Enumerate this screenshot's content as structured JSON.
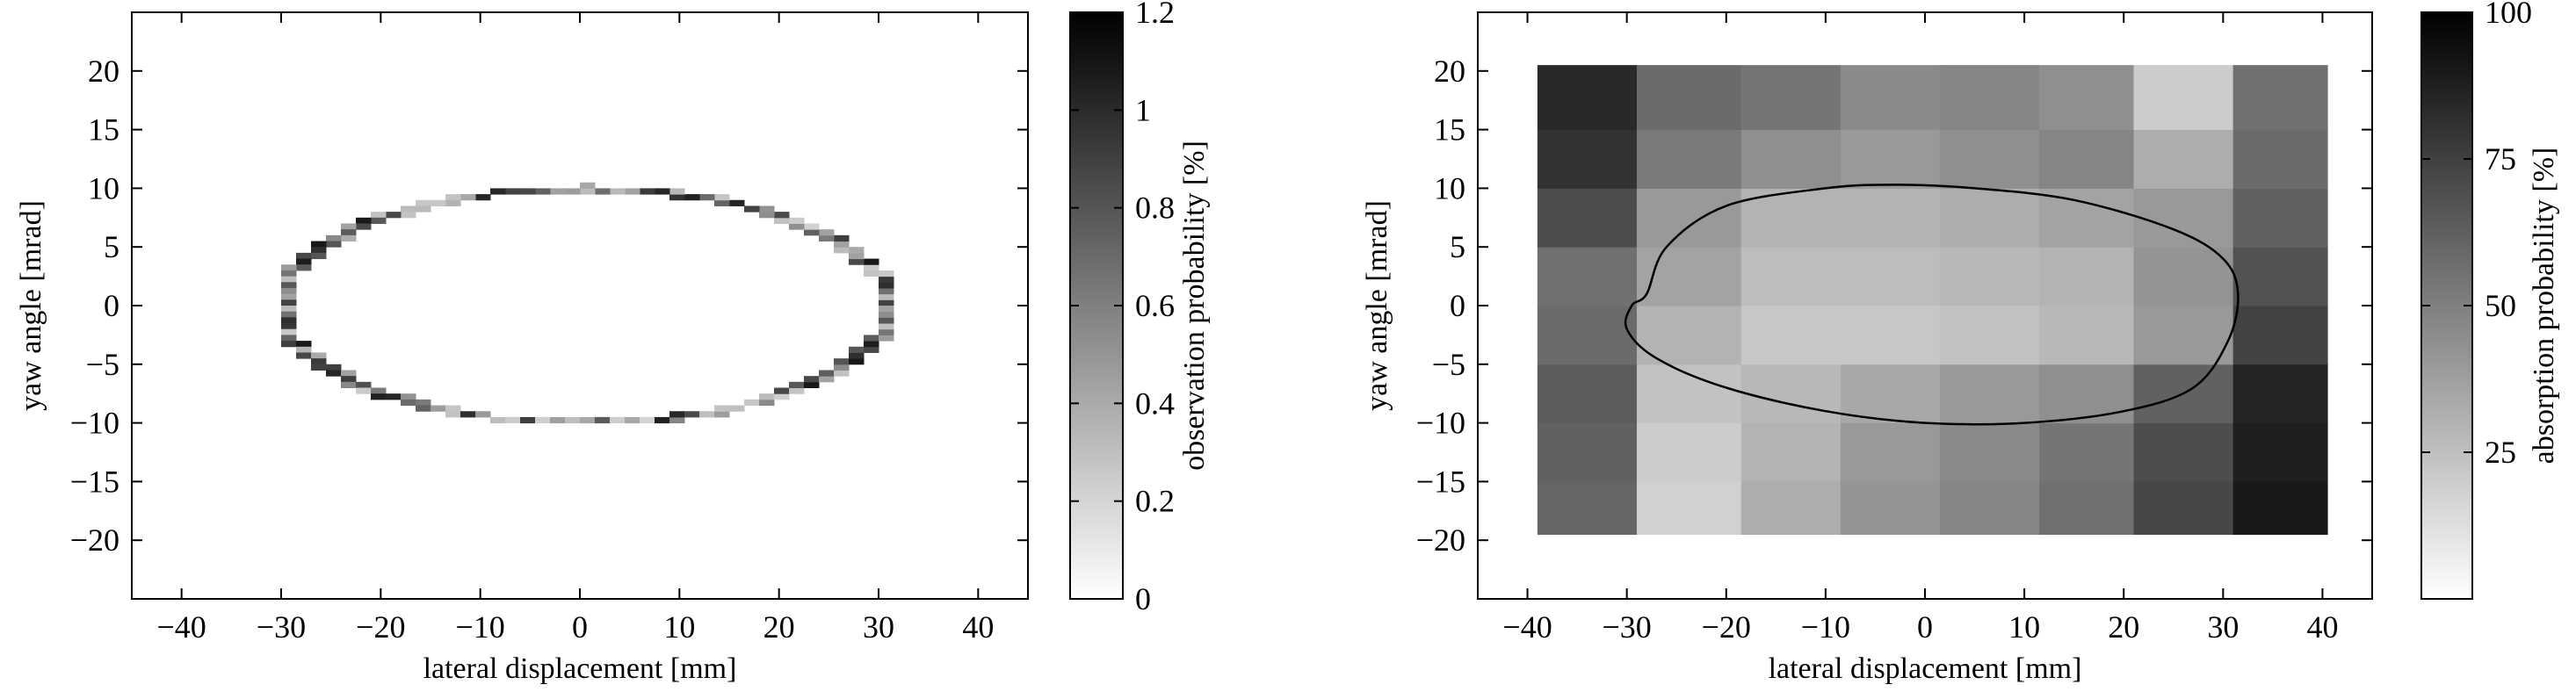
{
  "chart_data": [
    {
      "type": "heatmap",
      "title": "",
      "xlabel": "lateral displacement [mm]",
      "ylabel": "yaw angle [mrad]",
      "xlim": [
        -45,
        45
      ],
      "ylim": [
        -25,
        25
      ],
      "xticks": [
        -40,
        -30,
        -20,
        -10,
        0,
        10,
        20,
        30,
        40
      ],
      "yticks": [
        -20,
        -15,
        -10,
        -5,
        0,
        5,
        10,
        15,
        20
      ],
      "colorbar": {
        "label": "observation probability [%]",
        "range": [
          0,
          1.2
        ],
        "ticks": [
          0,
          0.2,
          0.4,
          0.6,
          0.8,
          1,
          1.2
        ],
        "colormap": "gray-reversed",
        "low_color": "#ffffff",
        "high_color": "#000000"
      },
      "ring": {
        "description": "Probability mass concentrated on elliptical contour",
        "center": [
          0.5,
          0
        ],
        "semi_axis_x": 30.5,
        "semi_axis_y": 10,
        "x_cell_size": 1.5,
        "y_cell_size": 0.5,
        "value_range": [
          0.2,
          1.1
        ],
        "grid": false
      }
    },
    {
      "type": "heatmap",
      "title": "",
      "xlabel": "lateral displacement [mm]",
      "ylabel": "yaw angle [mrad]",
      "xlim": [
        -45,
        45
      ],
      "ylim": [
        -25,
        25
      ],
      "xticks": [
        -40,
        -30,
        -20,
        -10,
        0,
        10,
        20,
        30,
        40
      ],
      "yticks": [
        -20,
        -15,
        -10,
        -5,
        0,
        5,
        10,
        15,
        20
      ],
      "colorbar": {
        "label": "absorption probability [%]",
        "range": [
          0,
          100
        ],
        "ticks": [
          25,
          50,
          75,
          100
        ],
        "colormap": "gray-reversed",
        "low_color": "#ffffff",
        "high_color": "#000000"
      },
      "x_edges": [
        -39,
        -29,
        -18.5,
        -8.5,
        1.5,
        11.5,
        21,
        31,
        40.5
      ],
      "y_edges": [
        -19.5,
        -15,
        -10,
        -5,
        0,
        5,
        10,
        15,
        20.5
      ],
      "values": [
        [
          60,
          18,
          32,
          42,
          48,
          56,
          72,
          90
        ],
        [
          62,
          20,
          30,
          40,
          46,
          54,
          70,
          88
        ],
        [
          64,
          24,
          28,
          34,
          40,
          44,
          62,
          86
        ],
        [
          58,
          30,
          22,
          22,
          24,
          28,
          40,
          74
        ],
        [
          56,
          36,
          26,
          26,
          28,
          30,
          42,
          68
        ],
        [
          70,
          40,
          30,
          30,
          32,
          36,
          40,
          62
        ],
        [
          80,
          52,
          44,
          40,
          44,
          48,
          32,
          58
        ],
        [
          84,
          58,
          54,
          46,
          48,
          44,
          20,
          56
        ]
      ],
      "contour": {
        "description": "Single closed contour line drawn on top of heatmap",
        "points": [
          [
            -28,
            1
          ],
          [
            -26,
            5
          ],
          [
            -20,
            8.5
          ],
          [
            -10,
            10
          ],
          [
            -3,
            10.3
          ],
          [
            5,
            10
          ],
          [
            15,
            9
          ],
          [
            25,
            6.5
          ],
          [
            30,
            4
          ],
          [
            31.5,
            1
          ],
          [
            30.5,
            -3
          ],
          [
            27,
            -7
          ],
          [
            20,
            -9
          ],
          [
            10,
            -10
          ],
          [
            0,
            -10
          ],
          [
            -10,
            -9
          ],
          [
            -20,
            -7
          ],
          [
            -27,
            -4.5
          ],
          [
            -30,
            -2
          ],
          [
            -29.5,
            0
          ]
        ],
        "color": "#000000"
      }
    }
  ]
}
